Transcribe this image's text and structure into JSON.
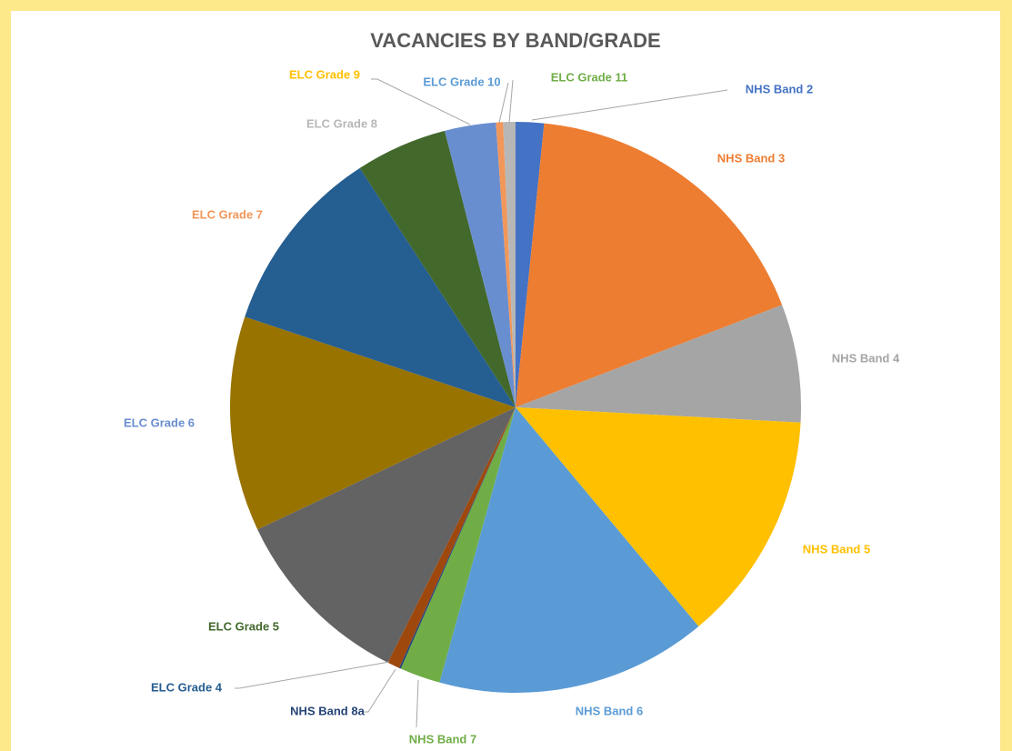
{
  "chart_data": {
    "type": "pie",
    "title": "VACANCIES BY BAND/GRADE",
    "categories": [
      "NHS Band 2",
      "NHS Band 3",
      "NHS Band 4",
      "NHS Band 5",
      "NHS Band 6",
      "NHS Band 7",
      "NHS Band 8a",
      "ELC Grade 4",
      "ELC Grade 5",
      "ELC Grade 6",
      "ELC Grade 7",
      "ELC Grade 8",
      "ELC Grade 9",
      "ELC Grade 10",
      "ELC Grade 11"
    ],
    "values": [
      1.6,
      17.6,
      6.7,
      13.1,
      15.4,
      2.3,
      0.1,
      0.7,
      10.6,
      12.2,
      10.7,
      5.2,
      2.9,
      0.4,
      0.7
    ],
    "colors": [
      "#4472c4",
      "#ed7d31",
      "#a5a5a5",
      "#ffc000",
      "#5b9bd5",
      "#70ad47",
      "#264478",
      "#9e480e",
      "#636363",
      "#997300",
      "#255e91",
      "#43682b",
      "#698ed0",
      "#f1975a",
      "#b7b7b7"
    ],
    "label_colors": [
      "#4472c4",
      "#ed7d31",
      "#a5a5a5",
      "#ffc000",
      "#5b9bd5",
      "#70ad47",
      "#264478",
      "#255e91",
      "#43682b",
      "#698ed0",
      "#f1975a",
      "#b7b7b7",
      "#ffc000",
      "#5b9bd5",
      "#70ad47"
    ]
  }
}
